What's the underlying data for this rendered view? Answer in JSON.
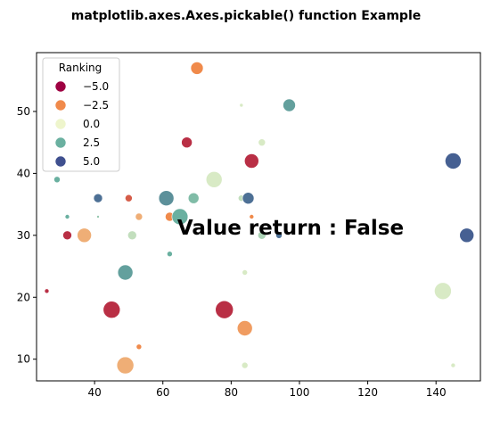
{
  "chart_data": {
    "type": "scatter",
    "title": "matplotlib.axes.Axes.pickable() function Example",
    "xlabel": "",
    "ylabel": "",
    "xlim": [
      23,
      153
    ],
    "ylim": [
      6.5,
      59.5
    ],
    "x_ticks": [
      20,
      40,
      60,
      80,
      100,
      120,
      140
    ],
    "y_ticks": [
      10,
      20,
      30,
      40,
      50
    ],
    "grid": false,
    "annotation": "Value return : False",
    "legend": {
      "title": "Ranking",
      "placement": "top-left",
      "entries": [
        {
          "label": "−5.0",
          "color": "#9e0142"
        },
        {
          "label": "−2.5",
          "color": "#f08a4b"
        },
        {
          "label": "0.0",
          "color": "#eef5cc"
        },
        {
          "label": "2.5",
          "color": "#6ab0a0"
        },
        {
          "label": "5.0",
          "color": "#3f508f"
        }
      ]
    },
    "colormap": [
      "#9e0142",
      "#f08a4b",
      "#eef5cc",
      "#6ab0a0",
      "#3f508f"
    ],
    "color_range": [
      -6,
      6
    ],
    "points": [
      {
        "x": 70,
        "y": 57,
        "rank": -3,
        "size": 14
      },
      {
        "x": 83,
        "y": 51,
        "rank": 0.5,
        "size": 4
      },
      {
        "x": 97,
        "y": 51,
        "rank": 3.5,
        "size": 14
      },
      {
        "x": 89,
        "y": 45,
        "rank": 0.5,
        "size": 8
      },
      {
        "x": 67,
        "y": 45,
        "rank": -5,
        "size": 12
      },
      {
        "x": 86,
        "y": 42,
        "rank": -5,
        "size": 16
      },
      {
        "x": 145,
        "y": 42,
        "rank": 5.5,
        "size": 18
      },
      {
        "x": 75,
        "y": 39,
        "rank": 0.5,
        "size": 18
      },
      {
        "x": 29,
        "y": 39,
        "rank": 3,
        "size": 7
      },
      {
        "x": 41,
        "y": 36,
        "rank": 5,
        "size": 10
      },
      {
        "x": 50,
        "y": 36,
        "rank": -4,
        "size": 8
      },
      {
        "x": 61,
        "y": 36,
        "rank": 4,
        "size": 17
      },
      {
        "x": 69,
        "y": 36,
        "rank": 2.5,
        "size": 12
      },
      {
        "x": 83,
        "y": 36,
        "rank": 1,
        "size": 7
      },
      {
        "x": 85,
        "y": 36,
        "rank": 5,
        "size": 13
      },
      {
        "x": 32,
        "y": 33,
        "rank": 3,
        "size": 5
      },
      {
        "x": 41,
        "y": 33,
        "rank": 2,
        "size": 3
      },
      {
        "x": 53,
        "y": 33,
        "rank": -2,
        "size": 8
      },
      {
        "x": 62,
        "y": 33,
        "rank": -3,
        "size": 10
      },
      {
        "x": 65,
        "y": 33,
        "rank": 3,
        "size": 18
      },
      {
        "x": 86,
        "y": 33,
        "rank": -3,
        "size": 5
      },
      {
        "x": 32,
        "y": 30,
        "rank": -5,
        "size": 10
      },
      {
        "x": 37,
        "y": 30,
        "rank": -2,
        "size": 16
      },
      {
        "x": 51,
        "y": 30,
        "rank": 1,
        "size": 10
      },
      {
        "x": 89,
        "y": 30,
        "rank": 1.5,
        "size": 9
      },
      {
        "x": 94,
        "y": 30,
        "rank": 5,
        "size": 7
      },
      {
        "x": 149,
        "y": 30,
        "rank": 5.5,
        "size": 16
      },
      {
        "x": 62,
        "y": 27,
        "rank": 3,
        "size": 6
      },
      {
        "x": 49,
        "y": 24,
        "rank": 3.5,
        "size": 17
      },
      {
        "x": 84,
        "y": 24,
        "rank": 0.5,
        "size": 6
      },
      {
        "x": 26,
        "y": 21,
        "rank": -5,
        "size": 5
      },
      {
        "x": 142,
        "y": 21,
        "rank": 0.5,
        "size": 19
      },
      {
        "x": 45,
        "y": 18,
        "rank": -5,
        "size": 19
      },
      {
        "x": 78,
        "y": 18,
        "rank": -5,
        "size": 20
      },
      {
        "x": 84,
        "y": 15,
        "rank": -2.5,
        "size": 17
      },
      {
        "x": 53,
        "y": 12,
        "rank": -3,
        "size": 6
      },
      {
        "x": 49,
        "y": 9,
        "rank": -2,
        "size": 19
      },
      {
        "x": 84,
        "y": 9,
        "rank": 0.5,
        "size": 7
      },
      {
        "x": 145,
        "y": 9,
        "rank": 0.5,
        "size": 5
      }
    ]
  }
}
